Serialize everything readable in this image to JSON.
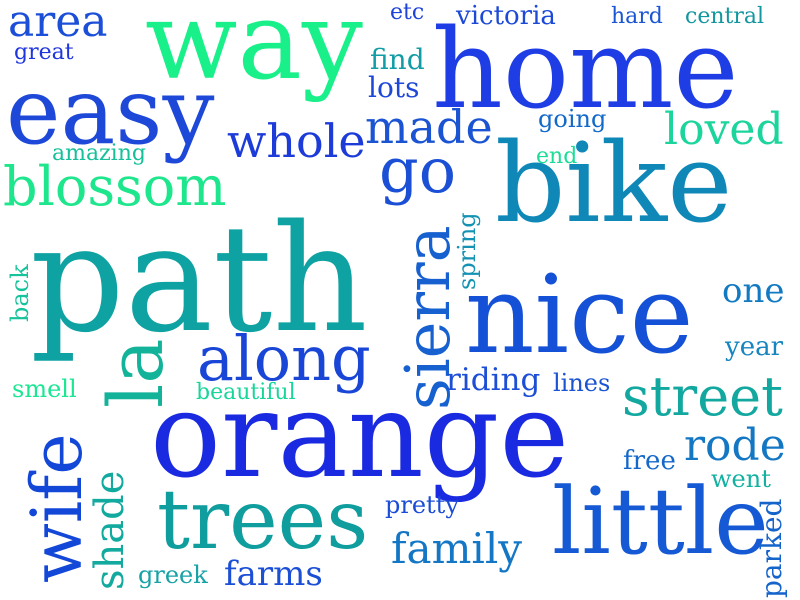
{
  "words": {
    "orange": {
      "text": "orange",
      "color": "#1a2ae0"
    },
    "path": {
      "text": "path",
      "color": "#0fa2a2"
    },
    "home": {
      "text": "home",
      "color": "#1f3de4"
    },
    "bike": {
      "text": "bike",
      "color": "#0f88b8"
    },
    "nice": {
      "text": "nice",
      "color": "#1451d6"
    },
    "way": {
      "text": "way",
      "color": "#19f08a"
    },
    "easy": {
      "text": "easy",
      "color": "#1e48d8"
    },
    "little": {
      "text": "little",
      "color": "#1559d4"
    },
    "trees": {
      "text": "trees",
      "color": "#0f9d9e"
    },
    "la": {
      "text": "la",
      "color": "#13b39a"
    },
    "along": {
      "text": "along",
      "color": "#1946d6"
    },
    "sierra": {
      "text": "sierra",
      "color": "#1660d0"
    },
    "wife": {
      "text": "wife",
      "color": "#1347d8"
    },
    "blossom": {
      "text": "blossom",
      "color": "#1ee68c"
    },
    "street": {
      "text": "street",
      "color": "#12a89f"
    },
    "go": {
      "text": "go",
      "color": "#1b4fd5"
    },
    "whole": {
      "text": "whole",
      "color": "#1d3bd8"
    },
    "area": {
      "text": "area",
      "color": "#1c4fd7"
    },
    "made": {
      "text": "made",
      "color": "#1b54d3"
    },
    "family": {
      "text": "family",
      "color": "#1477c6"
    },
    "loved": {
      "text": "loved",
      "color": "#1cd59c"
    },
    "rode": {
      "text": "rode",
      "color": "#1377c4"
    },
    "shade": {
      "text": "shade",
      "color": "#12aa9e"
    },
    "riding": {
      "text": "riding",
      "color": "#1c4ed6"
    },
    "farms": {
      "text": "farms",
      "color": "#1b4fd5"
    },
    "one": {
      "text": "one",
      "color": "#1279c3"
    },
    "find": {
      "text": "find",
      "color": "#119ca6"
    },
    "lots": {
      "text": "lots",
      "color": "#1d47d8"
    },
    "victoria": {
      "text": "victoria",
      "color": "#1c49d7"
    },
    "hard": {
      "text": "hard",
      "color": "#1a55d3"
    },
    "central": {
      "text": "central",
      "color": "#12969f"
    },
    "great": {
      "text": "great",
      "color": "#1f36de"
    },
    "amazing": {
      "text": "amazing",
      "color": "#16c09a"
    },
    "going": {
      "text": "going",
      "color": "#1369c9"
    },
    "end": {
      "text": "end",
      "color": "#1cdd96"
    },
    "spring": {
      "text": "spring",
      "color": "#1492b3"
    },
    "back": {
      "text": "back",
      "color": "#16c39b"
    },
    "year": {
      "text": "year",
      "color": "#1785bf"
    },
    "smell": {
      "text": "smell",
      "color": "#19e792"
    },
    "beautiful": {
      "text": "beautiful",
      "color": "#18d69a"
    },
    "lines": {
      "text": "lines",
      "color": "#1a54d2"
    },
    "free": {
      "text": "free",
      "color": "#1568c9"
    },
    "went": {
      "text": "went",
      "color": "#13b1a2"
    },
    "pretty": {
      "text": "pretty",
      "color": "#1a4cd6"
    },
    "greek": {
      "text": "greek",
      "color": "#16a2a6"
    },
    "parked": {
      "text": "parked",
      "color": "#1564cb"
    },
    "etc": {
      "text": "etc",
      "color": "#1d43d9"
    }
  }
}
